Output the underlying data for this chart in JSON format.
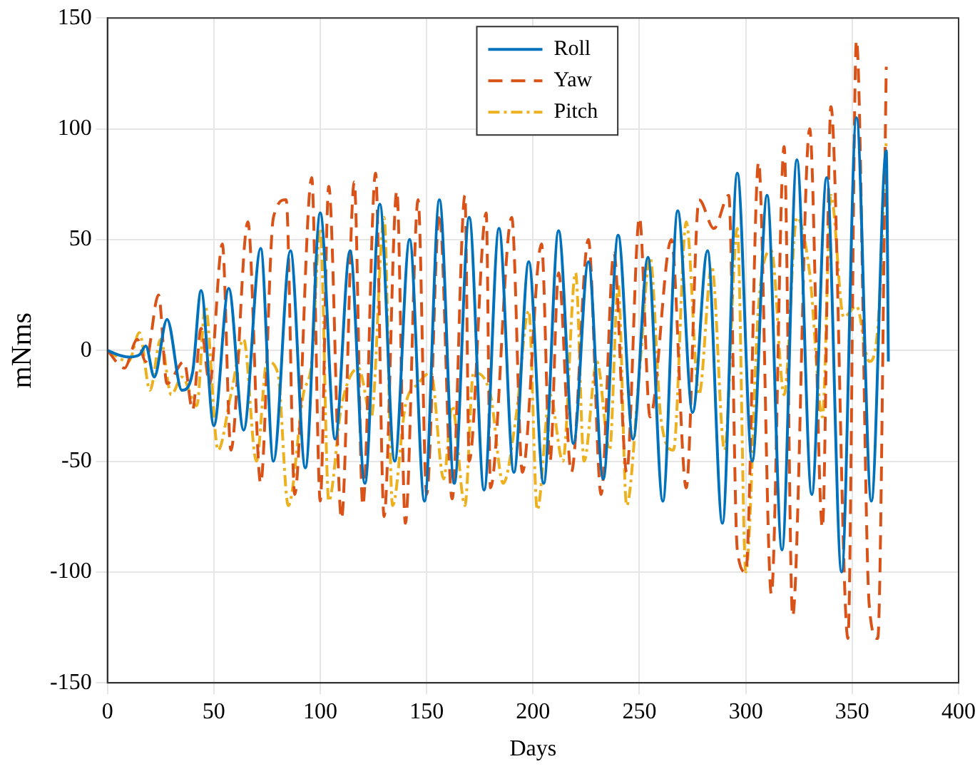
{
  "chart_data": {
    "type": "line",
    "xlabel": "Days",
    "ylabel": "mNms",
    "xlim": [
      0,
      400
    ],
    "xticks": [
      0,
      50,
      100,
      150,
      200,
      250,
      300,
      350,
      400
    ],
    "ylim": [
      -150,
      150
    ],
    "yticks": [
      -150,
      -100,
      -50,
      0,
      50,
      100,
      150
    ],
    "grid": true,
    "legend": "top",
    "marker": "none",
    "series": [
      {
        "name": "Roll",
        "color": "#0072bd",
        "line_style": "solid",
        "x": [
          0,
          5,
          10,
          15,
          18,
          22,
          28,
          35,
          40,
          44,
          50,
          57,
          64,
          72,
          78,
          86,
          93,
          100,
          107,
          114,
          121,
          128,
          135,
          142,
          149,
          156,
          163,
          170,
          177,
          184,
          191,
          198,
          205,
          212,
          219,
          226,
          233,
          240,
          247,
          254,
          261,
          268,
          275,
          282,
          289,
          296,
          303,
          310,
          317,
          324,
          331,
          338,
          345,
          352,
          359,
          366,
          367
        ],
        "values": [
          0,
          -2,
          -3,
          -2,
          2,
          -12,
          14,
          -18,
          -10,
          27,
          -34,
          28,
          -36,
          46,
          -50,
          45,
          -53,
          62,
          -40,
          45,
          -60,
          66,
          -50,
          50,
          -68,
          68,
          -60,
          60,
          -63,
          55,
          -55,
          40,
          -60,
          54,
          -42,
          40,
          -58,
          52,
          -40,
          42,
          -68,
          63,
          -28,
          45,
          -78,
          80,
          -50,
          70,
          -90,
          86,
          -65,
          78,
          -100,
          105,
          -68,
          90,
          -5
        ]
      },
      {
        "name": "Yaw",
        "color": "#d95319",
        "line_style": "dashed",
        "x": [
          0,
          8,
          14,
          18,
          24,
          28,
          36,
          40,
          44,
          48,
          54,
          58,
          66,
          72,
          78,
          84,
          88,
          96,
          100,
          104,
          110,
          116,
          120,
          126,
          130,
          136,
          140,
          146,
          150,
          156,
          162,
          168,
          170,
          178,
          180,
          190,
          195,
          204,
          208,
          212,
          218,
          226,
          232,
          238,
          244,
          250,
          255,
          265,
          272,
          278,
          285,
          292,
          296,
          300,
          306,
          312,
          318,
          322,
          330,
          336,
          340,
          348,
          352,
          358,
          362,
          366
        ],
        "values": [
          0,
          -8,
          5,
          -5,
          25,
          -15,
          -5,
          -27,
          10,
          -15,
          48,
          -45,
          58,
          -60,
          60,
          68,
          -65,
          78,
          -68,
          74,
          -76,
          76,
          -70,
          80,
          -75,
          72,
          -78,
          68,
          -65,
          62,
          -67,
          70,
          -50,
          62,
          -62,
          60,
          -55,
          48,
          -50,
          35,
          -55,
          50,
          -65,
          44,
          -55,
          60,
          -30,
          50,
          -62,
          68,
          55,
          70,
          -90,
          -100,
          85,
          -110,
          92,
          -120,
          100,
          -80,
          110,
          -130,
          140,
          -115,
          -130,
          128
        ]
      },
      {
        "name": "Pitch",
        "color": "#edb120",
        "line_style": "dotted",
        "x": [
          0,
          10,
          15,
          20,
          25,
          30,
          35,
          42,
          46,
          52,
          58,
          64,
          70,
          75,
          80,
          85,
          92,
          96,
          100,
          104,
          110,
          118,
          124,
          130,
          134,
          140,
          146,
          152,
          158,
          162,
          168,
          172,
          180,
          186,
          192,
          198,
          202,
          208,
          214,
          220,
          224,
          230,
          236,
          240,
          244,
          250,
          255,
          260,
          266,
          272,
          278,
          284,
          290,
          296,
          300,
          306,
          312,
          318,
          324,
          330,
          336,
          340,
          346,
          352,
          358,
          362,
          366
        ],
        "values": [
          0,
          -5,
          8,
          -18,
          5,
          -20,
          -12,
          -25,
          20,
          -45,
          -20,
          5,
          -50,
          -5,
          -10,
          -70,
          -20,
          -5,
          55,
          -68,
          -25,
          -8,
          -30,
          60,
          -70,
          -25,
          -15,
          -10,
          -58,
          -25,
          -70,
          -10,
          -20,
          -60,
          -30,
          18,
          -72,
          -20,
          -50,
          35,
          -50,
          -5,
          -45,
          30,
          -70,
          -10,
          42,
          -30,
          -45,
          58,
          -20,
          38,
          -45,
          55,
          -100,
          20,
          45,
          -20,
          60,
          35,
          -30,
          70,
          15,
          20,
          -5,
          10,
          95
        ]
      }
    ]
  }
}
